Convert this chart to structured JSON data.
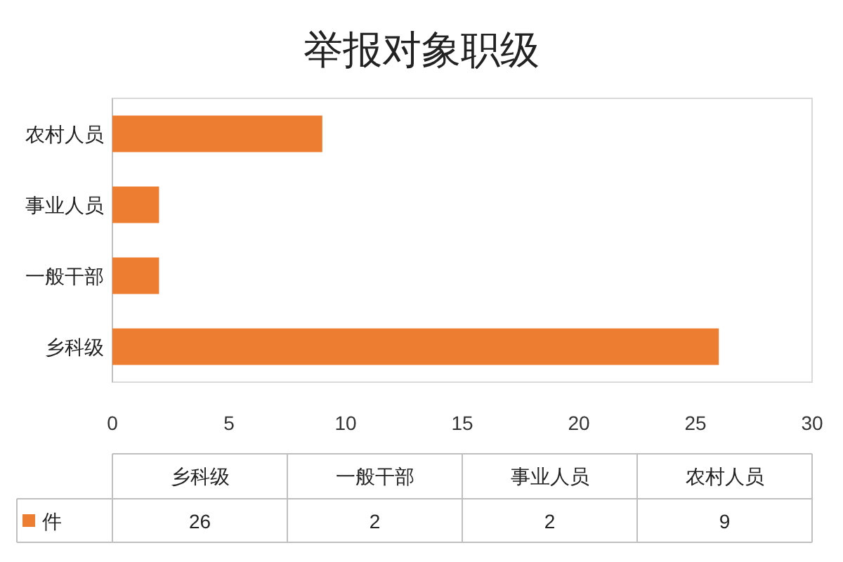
{
  "chart_data": {
    "type": "bar",
    "title": "举报对象职级",
    "orientation": "horizontal",
    "categories": [
      "农村人员",
      "事业人员",
      "一般干部",
      "乡科级"
    ],
    "series": [
      {
        "name": "件",
        "color": "#ed7d31",
        "values": [
          9,
          2,
          2,
          26
        ]
      }
    ],
    "xlim": [
      0,
      30
    ],
    "xticks": [
      0,
      5,
      10,
      15,
      20,
      25,
      30
    ],
    "annotations": [
      "26",
      "2",
      "2",
      "9"
    ],
    "legend": "bottom"
  }
}
